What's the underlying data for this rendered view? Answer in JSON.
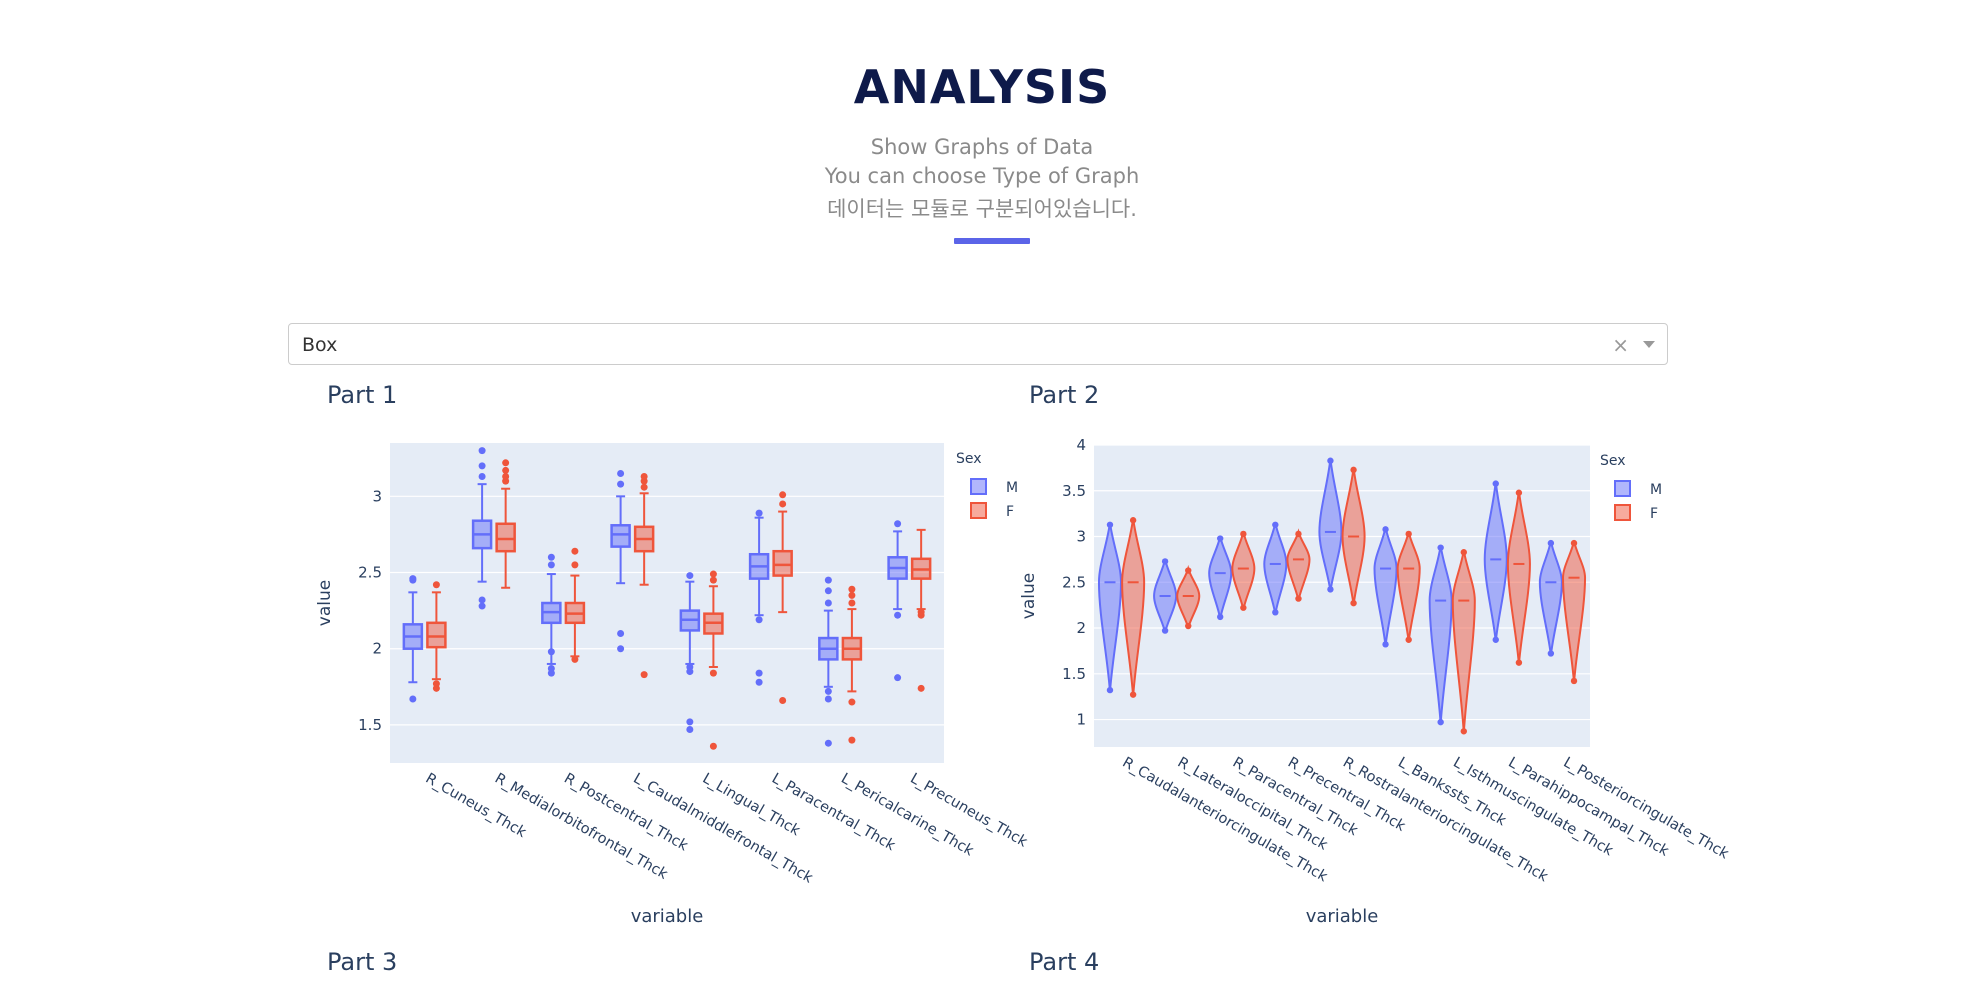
{
  "header": {
    "title": "ANALYSIS",
    "lines": [
      "Show Graphs of Data",
      "You can choose Type of Graph",
      "데이터는 모듈로 구분되어있습니다."
    ]
  },
  "dropdown": {
    "value": "Box",
    "clear": "×"
  },
  "parts": [
    "Part 1",
    "Part 2",
    "Part 3",
    "Part 4"
  ],
  "colors": {
    "male": "#636efa",
    "female": "#ef553b",
    "plot_bg": "#e5ecf6",
    "accent": "#5b64e8"
  },
  "chart_data": [
    {
      "type": "box",
      "title": "Part 1",
      "xlabel": "variable",
      "ylabel": "value",
      "ylim": [
        1.25,
        3.35
      ],
      "yticks": [
        1.5,
        2,
        2.5,
        3
      ],
      "ytick_labels": [
        "1.5",
        "2",
        "2.5",
        "3"
      ],
      "legend": {
        "title": "Sex",
        "entries": [
          "M",
          "F"
        ]
      },
      "categories": [
        "R_Cuneus_Thck",
        "R_Medialorbitofrontal_Thck",
        "R_Postcentral_Thck",
        "L_Caudalmiddlefrontal_Thck",
        "L_Lingual_Thck",
        "L_Paracentral_Thck",
        "L_Pericalcarine_Thck",
        "L_Precuneus_Thck"
      ],
      "series": [
        {
          "name": "M",
          "boxes": [
            {
              "min": 1.78,
              "q1": 2.0,
              "median": 2.08,
              "q3": 2.16,
              "max": 2.37,
              "outliers": [
                1.67,
                2.45,
                2.46
              ]
            },
            {
              "min": 2.44,
              "q1": 2.66,
              "median": 2.75,
              "q3": 2.84,
              "max": 3.08,
              "outliers": [
                2.28,
                2.32,
                3.13,
                3.2,
                3.3
              ]
            },
            {
              "min": 1.9,
              "q1": 2.17,
              "median": 2.24,
              "q3": 2.3,
              "max": 2.49,
              "outliers": [
                1.84,
                1.87,
                1.98,
                2.55,
                2.6
              ]
            },
            {
              "min": 2.43,
              "q1": 2.67,
              "median": 2.75,
              "q3": 2.81,
              "max": 3.0,
              "outliers": [
                2.0,
                2.1,
                3.08,
                3.15
              ]
            },
            {
              "min": 1.9,
              "q1": 2.12,
              "median": 2.19,
              "q3": 2.25,
              "max": 2.44,
              "outliers": [
                1.47,
                1.52,
                1.85,
                1.88,
                2.48
              ]
            },
            {
              "min": 2.22,
              "q1": 2.46,
              "median": 2.54,
              "q3": 2.62,
              "max": 2.86,
              "outliers": [
                1.78,
                1.84,
                2.19,
                2.89
              ]
            },
            {
              "min": 1.75,
              "q1": 1.93,
              "median": 2.0,
              "q3": 2.07,
              "max": 2.25,
              "outliers": [
                1.38,
                1.67,
                1.72,
                2.3,
                2.38,
                2.45
              ]
            },
            {
              "min": 2.26,
              "q1": 2.46,
              "median": 2.53,
              "q3": 2.6,
              "max": 2.77,
              "outliers": [
                1.81,
                2.22,
                2.82
              ]
            }
          ]
        },
        {
          "name": "F",
          "boxes": [
            {
              "min": 1.8,
              "q1": 2.01,
              "median": 2.08,
              "q3": 2.17,
              "max": 2.37,
              "outliers": [
                1.74,
                1.77,
                2.42
              ]
            },
            {
              "min": 2.4,
              "q1": 2.64,
              "median": 2.72,
              "q3": 2.82,
              "max": 3.05,
              "outliers": [
                3.1,
                3.13,
                3.17,
                3.22
              ]
            },
            {
              "min": 1.95,
              "q1": 2.17,
              "median": 2.23,
              "q3": 2.3,
              "max": 2.48,
              "outliers": [
                1.93,
                2.55,
                2.64
              ]
            },
            {
              "min": 2.42,
              "q1": 2.64,
              "median": 2.72,
              "q3": 2.8,
              "max": 3.02,
              "outliers": [
                1.83,
                3.06,
                3.1,
                3.13
              ]
            },
            {
              "min": 1.88,
              "q1": 2.1,
              "median": 2.17,
              "q3": 2.23,
              "max": 2.41,
              "outliers": [
                1.36,
                1.84,
                2.45,
                2.49
              ]
            },
            {
              "min": 2.24,
              "q1": 2.48,
              "median": 2.55,
              "q3": 2.64,
              "max": 2.9,
              "outliers": [
                1.66,
                2.95,
                3.01
              ]
            },
            {
              "min": 1.72,
              "q1": 1.93,
              "median": 2.0,
              "q3": 2.07,
              "max": 2.26,
              "outliers": [
                1.4,
                1.65,
                2.3,
                2.35,
                2.39
              ]
            },
            {
              "min": 2.26,
              "q1": 2.46,
              "median": 2.52,
              "q3": 2.59,
              "max": 2.78,
              "outliers": [
                1.74,
                2.22,
                2.24
              ]
            }
          ]
        }
      ]
    },
    {
      "type": "violin",
      "title": "Part 2",
      "xlabel": "variable",
      "ylabel": "value",
      "ylim": [
        0.7,
        4.0
      ],
      "yticks": [
        1,
        1.5,
        2,
        2.5,
        3,
        3.5,
        4
      ],
      "ytick_labels": [
        "1",
        "1.5",
        "2",
        "2.5",
        "3",
        "3.5",
        "4"
      ],
      "legend": {
        "title": "Sex",
        "entries": [
          "M",
          "F"
        ]
      },
      "categories": [
        "R_Caudalanteriorcingulate_Thck",
        "R_Lateraloccipital_Thck",
        "R_Paracentral_Thck",
        "R_Precentral_Thck",
        "R_Rostralanteriorcingulate_Thck",
        "L_Bankssts_Thck",
        "L_Isthmuscingulate_Thck",
        "L_Parahippocampal_Thck",
        "L_Posteriorcingulate_Thck"
      ],
      "series": [
        {
          "name": "M",
          "violins": [
            {
              "min": 1.3,
              "median": 2.5,
              "max": 3.15
            },
            {
              "min": 1.95,
              "median": 2.35,
              "max": 2.75
            },
            {
              "min": 2.1,
              "median": 2.6,
              "max": 3.0
            },
            {
              "min": 2.15,
              "median": 2.7,
              "max": 3.15
            },
            {
              "min": 2.4,
              "median": 3.05,
              "max": 3.85
            },
            {
              "min": 1.8,
              "median": 2.65,
              "max": 3.1
            },
            {
              "min": 0.95,
              "median": 2.3,
              "max": 2.9
            },
            {
              "min": 1.85,
              "median": 2.75,
              "max": 3.6
            },
            {
              "min": 1.7,
              "median": 2.5,
              "max": 2.95
            }
          ]
        },
        {
          "name": "F",
          "violins": [
            {
              "min": 1.25,
              "median": 2.5,
              "max": 3.2
            },
            {
              "min": 2.0,
              "median": 2.35,
              "max": 2.65
            },
            {
              "min": 2.2,
              "median": 2.65,
              "max": 3.05
            },
            {
              "min": 2.3,
              "median": 2.75,
              "max": 3.05
            },
            {
              "min": 2.25,
              "median": 3.0,
              "max": 3.75
            },
            {
              "min": 1.85,
              "median": 2.65,
              "max": 3.05
            },
            {
              "min": 0.85,
              "median": 2.3,
              "max": 2.85
            },
            {
              "min": 1.6,
              "median": 2.7,
              "max": 3.5
            },
            {
              "min": 1.4,
              "median": 2.55,
              "max": 2.95
            }
          ]
        }
      ]
    }
  ]
}
